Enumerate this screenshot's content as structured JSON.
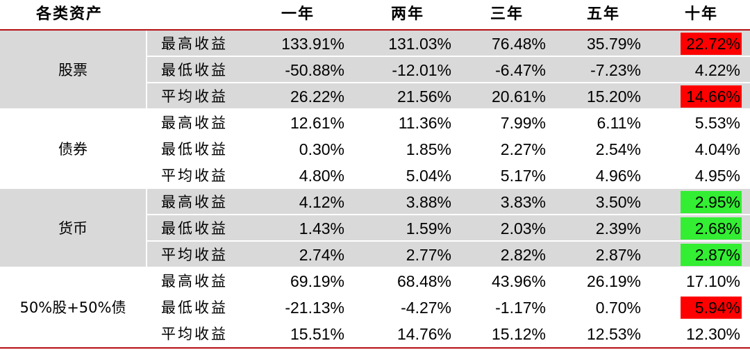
{
  "header": {
    "asset_class": "各类资产",
    "periods": [
      "一年",
      "两年",
      "三年",
      "五年",
      "十年"
    ]
  },
  "colors": {
    "rule": "#b40f14",
    "stripe": "#d9d9d9",
    "highlight_red": "#ff0000",
    "highlight_green": "#33ee33"
  },
  "groups": [
    {
      "name": "股票",
      "rows": [
        {
          "metric": "最高收益",
          "values": [
            "133.91%",
            "131.03%",
            "76.48%",
            "35.79%",
            "22.72%"
          ],
          "highlight": "red"
        },
        {
          "metric": "最低收益",
          "values": [
            "-50.88%",
            "-12.01%",
            "-6.47%",
            "-7.23%",
            "4.22%"
          ],
          "highlight": ""
        },
        {
          "metric": "平均收益",
          "values": [
            "26.22%",
            "21.56%",
            "20.61%",
            "15.20%",
            "14.66%"
          ],
          "highlight": "red"
        }
      ]
    },
    {
      "name": "债券",
      "rows": [
        {
          "metric": "最高收益",
          "values": [
            "12.61%",
            "11.36%",
            "7.99%",
            "6.11%",
            "5.53%"
          ],
          "highlight": ""
        },
        {
          "metric": "最低收益",
          "values": [
            "0.30%",
            "1.85%",
            "2.27%",
            "2.54%",
            "4.04%"
          ],
          "highlight": ""
        },
        {
          "metric": "平均收益",
          "values": [
            "4.80%",
            "5.04%",
            "5.17%",
            "4.96%",
            "4.95%"
          ],
          "highlight": ""
        }
      ]
    },
    {
      "name": "货币",
      "rows": [
        {
          "metric": "最高收益",
          "values": [
            "4.12%",
            "3.88%",
            "3.83%",
            "3.50%",
            "2.95%"
          ],
          "highlight": "green"
        },
        {
          "metric": "最低收益",
          "values": [
            "1.43%",
            "1.59%",
            "2.03%",
            "2.39%",
            "2.68%"
          ],
          "highlight": "green"
        },
        {
          "metric": "平均收益",
          "values": [
            "2.74%",
            "2.77%",
            "2.82%",
            "2.87%",
            "2.87%"
          ],
          "highlight": "green"
        }
      ]
    },
    {
      "name": "50%股+50%债",
      "rows": [
        {
          "metric": "最高收益",
          "values": [
            "69.19%",
            "68.48%",
            "43.96%",
            "26.19%",
            "17.10%"
          ],
          "highlight": ""
        },
        {
          "metric": "最低收益",
          "values": [
            "-21.13%",
            "-4.27%",
            "-1.17%",
            "0.70%",
            "5.94%"
          ],
          "highlight": "red"
        },
        {
          "metric": "平均收益",
          "values": [
            "15.51%",
            "14.76%",
            "15.12%",
            "12.53%",
            "12.30%"
          ],
          "highlight": ""
        }
      ]
    }
  ]
}
